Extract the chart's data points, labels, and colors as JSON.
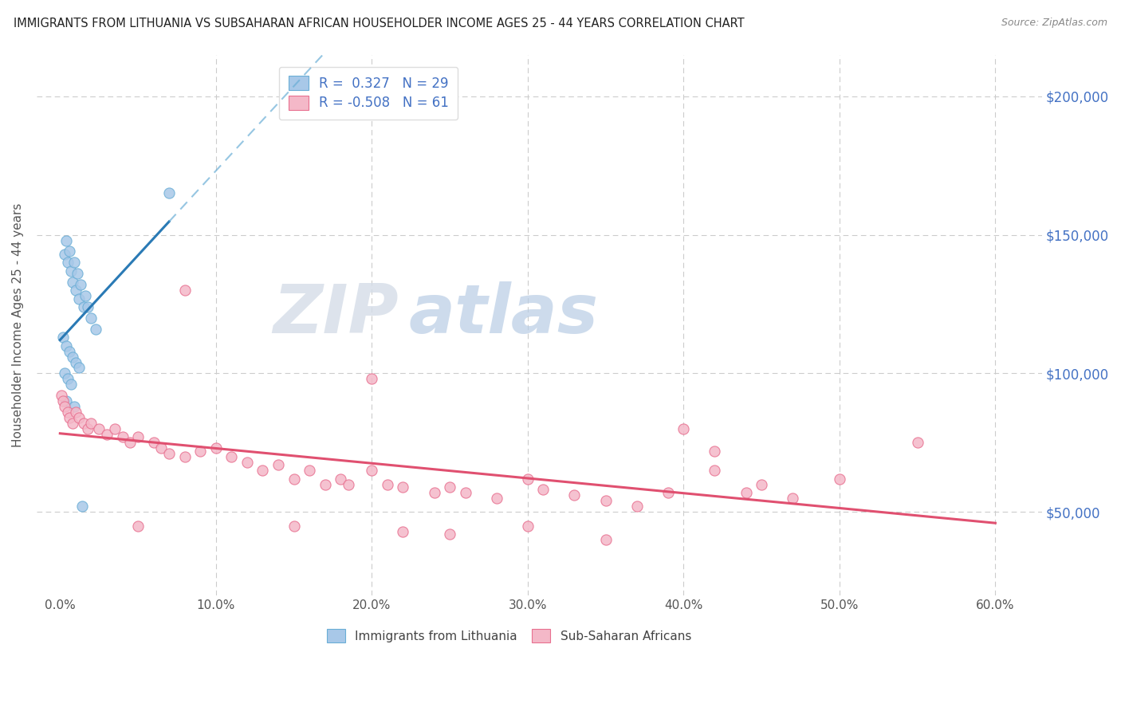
{
  "title": "IMMIGRANTS FROM LITHUANIA VS SUBSAHARAN AFRICAN HOUSEHOLDER INCOME AGES 25 - 44 YEARS CORRELATION CHART",
  "source": "Source: ZipAtlas.com",
  "ylabel": "Householder Income Ages 25 - 44 years",
  "xlabel_ticks": [
    "0.0%",
    "10.0%",
    "20.0%",
    "30.0%",
    "40.0%",
    "50.0%",
    "60.0%"
  ],
  "xlabel_vals": [
    0.0,
    10.0,
    20.0,
    30.0,
    40.0,
    50.0,
    60.0
  ],
  "ytick_vals": [
    50000,
    100000,
    150000,
    200000
  ],
  "ytick_labels": [
    "$50,000",
    "$100,000",
    "$150,000",
    "$200,000"
  ],
  "xlim": [
    -1.5,
    63
  ],
  "ylim": [
    20000,
    215000
  ],
  "watermark_zip": "ZIP",
  "watermark_atlas": "atlas",
  "lithuania_color": "#6aaed6",
  "lithuania_fc": "#a8c8e8",
  "subsaharan_color": "#e87090",
  "subsaharan_fc": "#f4b8c8",
  "lith_label": "R =  0.327   N = 29",
  "sub_label": "R = -0.508   N = 61",
  "bottom_lith_label": "Immigrants from Lithuania",
  "bottom_sub_label": "Sub-Saharan Africans",
  "legend_text_color": "#4472c4",
  "title_color": "#222222",
  "source_color": "#888888",
  "ylabel_color": "#555555",
  "tick_label_color": "#555555",
  "right_tick_color": "#4472c4",
  "grid_color": "#cccccc",
  "blue_line_color": "#2a7ab5",
  "blue_dash_color": "#6aaed6",
  "pink_line_color": "#e05070",
  "lithuania_x": [
    0.3,
    0.5,
    0.7,
    0.8,
    1.0,
    1.2,
    1.5,
    0.4,
    0.6,
    0.9,
    1.1,
    1.3,
    1.6,
    1.8,
    2.0,
    2.3,
    0.2,
    0.4,
    0.6,
    0.8,
    1.0,
    1.2,
    0.3,
    0.5,
    0.7,
    7.0,
    0.4,
    0.9,
    1.4
  ],
  "lithuania_y": [
    143000,
    140000,
    137000,
    133000,
    130000,
    127000,
    124000,
    148000,
    144000,
    140000,
    136000,
    132000,
    128000,
    124000,
    120000,
    116000,
    113000,
    110000,
    108000,
    106000,
    104000,
    102000,
    100000,
    98000,
    96000,
    165000,
    90000,
    88000,
    52000
  ],
  "subsaharan_x": [
    0.1,
    0.2,
    0.3,
    0.5,
    0.6,
    0.8,
    1.0,
    1.2,
    1.5,
    1.8,
    2.0,
    2.5,
    3.0,
    3.5,
    4.0,
    4.5,
    5.0,
    6.0,
    6.5,
    7.0,
    8.0,
    9.0,
    10.0,
    11.0,
    12.0,
    13.0,
    14.0,
    15.0,
    16.0,
    17.0,
    18.0,
    18.5,
    20.0,
    21.0,
    22.0,
    24.0,
    25.0,
    26.0,
    28.0,
    30.0,
    31.0,
    33.0,
    35.0,
    37.0,
    39.0,
    40.0,
    42.0,
    44.0,
    45.0,
    47.0,
    50.0,
    55.0,
    30.0,
    20.0,
    8.0,
    25.0,
    35.0,
    42.0,
    15.0,
    22.0,
    5.0
  ],
  "subsaharan_y": [
    92000,
    90000,
    88000,
    86000,
    84000,
    82000,
    86000,
    84000,
    82000,
    80000,
    82000,
    80000,
    78000,
    80000,
    77000,
    75000,
    77000,
    75000,
    73000,
    71000,
    70000,
    72000,
    73000,
    70000,
    68000,
    65000,
    67000,
    62000,
    65000,
    60000,
    62000,
    60000,
    65000,
    60000,
    59000,
    57000,
    59000,
    57000,
    55000,
    62000,
    58000,
    56000,
    54000,
    52000,
    57000,
    80000,
    65000,
    57000,
    60000,
    55000,
    62000,
    75000,
    45000,
    98000,
    130000,
    42000,
    40000,
    72000,
    45000,
    43000,
    45000
  ]
}
